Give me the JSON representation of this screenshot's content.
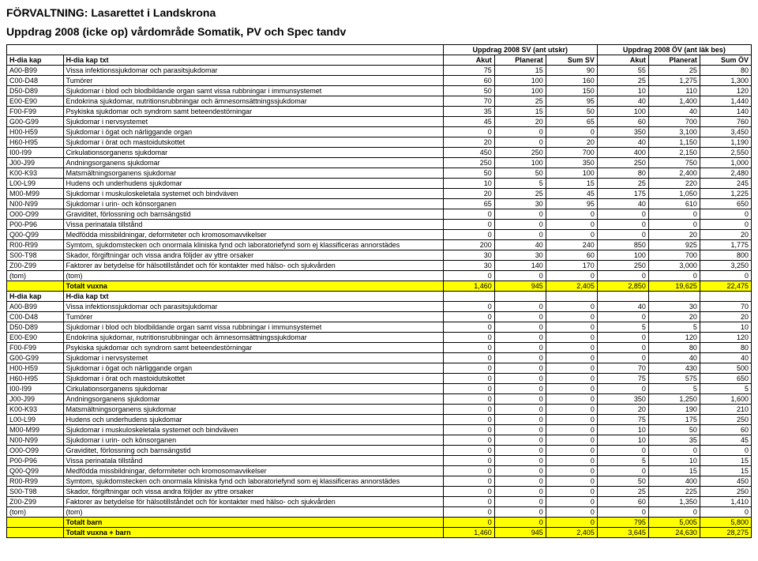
{
  "title": "FÖRVALTNING: Lasarettet i Landskrona",
  "subtitle": "Uppdrag 2008 (icke op) vårdområde Somatik, PV och Spec tandv",
  "group_headers": {
    "left1": "H-dia kap",
    "left2": "H-dia kap txt",
    "sv": "Uppdrag 2008 SV (ant utskr)",
    "ov": "Uppdrag 2008 ÖV (ant läk bes)"
  },
  "col_headers": [
    "Akut",
    "Planerat",
    "Sum SV",
    "Akut",
    "Planerat",
    "Sum ÖV"
  ],
  "section2_label1": "H-dia kap",
  "section2_label2": "H-dia kap txt",
  "rows_adult": [
    [
      "A00-B99",
      "Vissa infektionssjukdomar och parasitsjukdomar",
      75,
      15,
      90,
      55,
      25,
      80
    ],
    [
      "C00-D48",
      "Tumörer",
      60,
      100,
      160,
      25,
      "1,275",
      "1,300"
    ],
    [
      "D50-D89",
      "Sjukdomar i blod och blodbildande organ samt vissa rubbningar i immunsystemet",
      50,
      100,
      150,
      10,
      110,
      120
    ],
    [
      "E00-E90",
      "Endokrina sjukdomar, nutritionsrubbningar och ämnesomsättningssjukdomar",
      70,
      25,
      95,
      40,
      "1,400",
      "1,440"
    ],
    [
      "F00-F99",
      "Psykiska sjukdomar och syndrom samt beteendestörningar",
      35,
      15,
      50,
      100,
      40,
      140
    ],
    [
      "G00-G99",
      "Sjukdomar i nervsystemet",
      45,
      20,
      65,
      60,
      700,
      760
    ],
    [
      "H00-H59",
      "Sjukdomar i ögat och närliggande organ",
      0,
      0,
      0,
      350,
      "3,100",
      "3,450"
    ],
    [
      "H60-H95",
      "Sjukdomar i örat och mastoidutskottet",
      20,
      0,
      20,
      40,
      "1,150",
      "1,190"
    ],
    [
      "I00-I99",
      "Cirkulationsorganens sjukdomar",
      450,
      250,
      700,
      400,
      "2,150",
      "2,550"
    ],
    [
      "J00-J99",
      "Andningsorganens sjukdomar",
      250,
      100,
      350,
      250,
      750,
      "1,000"
    ],
    [
      "K00-K93",
      "Matsmältningsorganens sjukdomar",
      50,
      50,
      100,
      80,
      "2,400",
      "2,480"
    ],
    [
      "L00-L99",
      "Hudens och underhudens sjukdomar",
      10,
      5,
      15,
      25,
      220,
      245
    ],
    [
      "M00-M99",
      "Sjukdomar i muskuloskeletala systemet och bindväven",
      20,
      25,
      45,
      175,
      "1,050",
      "1,225"
    ],
    [
      "N00-N99",
      "Sjukdomar i urin- och könsorganen",
      65,
      30,
      95,
      40,
      610,
      650
    ],
    [
      "O00-O99",
      "Graviditet, förlossning och barnsängstid",
      0,
      0,
      0,
      0,
      0,
      0
    ],
    [
      "P00-P96",
      "Vissa perinatala tillstånd",
      0,
      0,
      0,
      0,
      0,
      0
    ],
    [
      "Q00-Q99",
      "Medfödda missbildningar, deformiteter och kromosomavvikelser",
      0,
      0,
      0,
      0,
      20,
      20
    ],
    [
      "R00-R99",
      "Symtom, sjukdomstecken och onormala kliniska fynd och laboratoriefynd som ej klassificeras annorstädes",
      200,
      40,
      240,
      850,
      925,
      "1,775"
    ],
    [
      "S00-T98",
      "Skador, förgiftningar och vissa andra följder av yttre orsaker",
      30,
      30,
      60,
      100,
      700,
      800
    ],
    [
      "Z00-Z99",
      "Faktorer av betydelse för hälsotillståndet och för kontakter med hälso- och sjukvården",
      30,
      140,
      170,
      250,
      "3,000",
      "3,250"
    ],
    [
      "(tom)",
      "(tom)",
      0,
      0,
      0,
      0,
      0,
      0
    ]
  ],
  "total_adult": [
    "",
    "Totalt vuxna",
    "1,460",
    945,
    "2,405",
    "2,850",
    "19,625",
    "22,475"
  ],
  "rows_child": [
    [
      "A00-B99",
      "Vissa infektionssjukdomar och parasitsjukdomar",
      0,
      0,
      0,
      40,
      30,
      70
    ],
    [
      "C00-D48",
      "Tumörer",
      0,
      0,
      0,
      0,
      20,
      20
    ],
    [
      "D50-D89",
      "Sjukdomar i blod och blodbildande organ samt vissa rubbningar i immunsystemet",
      0,
      0,
      0,
      5,
      5,
      10
    ],
    [
      "E00-E90",
      "Endokrina sjukdomar, nutritionsrubbningar och ämnesomsättningssjukdomar",
      0,
      0,
      0,
      0,
      120,
      120
    ],
    [
      "F00-F99",
      "Psykiska sjukdomar och syndrom samt beteendestörningar",
      0,
      0,
      0,
      0,
      80,
      80
    ],
    [
      "G00-G99",
      "Sjukdomar i nervsystemet",
      0,
      0,
      0,
      0,
      40,
      40
    ],
    [
      "H00-H59",
      "Sjukdomar i ögat och närliggande organ",
      0,
      0,
      0,
      70,
      430,
      500
    ],
    [
      "H60-H95",
      "Sjukdomar i örat och mastoidutskottet",
      0,
      0,
      0,
      75,
      575,
      650
    ],
    [
      "I00-I99",
      "Cirkulationsorganens sjukdomar",
      0,
      0,
      0,
      0,
      5,
      5
    ],
    [
      "J00-J99",
      "Andningsorganens sjukdomar",
      0,
      0,
      0,
      350,
      "1,250",
      "1,600"
    ],
    [
      "K00-K93",
      "Matsmältningsorganens sjukdomar",
      0,
      0,
      0,
      20,
      190,
      210
    ],
    [
      "L00-L99",
      "Hudens och underhudens sjukdomar",
      0,
      0,
      0,
      75,
      175,
      250
    ],
    [
      "M00-M99",
      "Sjukdomar i muskuloskeletala systemet och bindväven",
      0,
      0,
      0,
      10,
      50,
      60
    ],
    [
      "N00-N99",
      "Sjukdomar i urin- och könsorganen",
      0,
      0,
      0,
      10,
      35,
      45
    ],
    [
      "O00-O99",
      "Graviditet, förlossning och barnsängstid",
      0,
      0,
      0,
      0,
      0,
      0
    ],
    [
      "P00-P96",
      "Vissa perinatala tillstånd",
      0,
      0,
      0,
      5,
      10,
      15
    ],
    [
      "Q00-Q99",
      "Medfödda missbildningar, deformiteter och kromosomavvikelser",
      0,
      0,
      0,
      0,
      15,
      15
    ],
    [
      "R00-R99",
      "Symtom, sjukdomstecken och onormala kliniska fynd och laboratoriefynd som ej klassificeras annorstädes",
      0,
      0,
      0,
      50,
      400,
      450
    ],
    [
      "S00-T98",
      "Skador, förgiftningar och vissa andra följder av yttre orsaker",
      0,
      0,
      0,
      25,
      225,
      250
    ],
    [
      "Z00-Z99",
      "Faktorer av betydelse för hälsotillståndet och för kontakter med hälso- och sjukvården",
      0,
      0,
      0,
      60,
      "1,350",
      "1,410"
    ],
    [
      "(tom)",
      "(tom)",
      0,
      0,
      0,
      0,
      0,
      0
    ]
  ],
  "total_child": [
    "",
    "Totalt barn",
    0,
    0,
    0,
    795,
    "5,005",
    "5,800"
  ],
  "total_all": [
    "",
    "Totalt vuxna + barn",
    "1,460",
    945,
    "2,405",
    "3,645",
    "24,630",
    "28,275"
  ]
}
